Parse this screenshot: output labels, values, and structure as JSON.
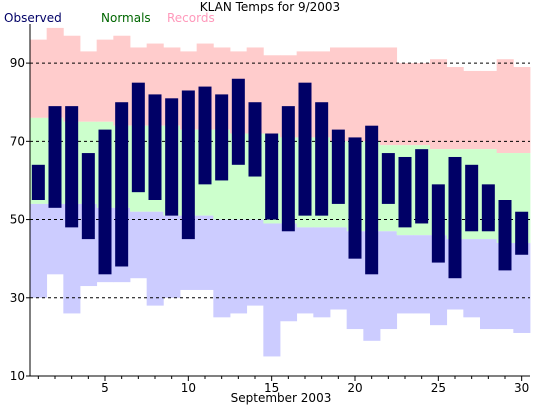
{
  "chart_data": {
    "type": "bar",
    "title": "KLAN Temps for 9/2003",
    "xlabel": "September 2003",
    "ylabel": "",
    "ylim": [
      10,
      100
    ],
    "xlim": [
      0.5,
      30.5
    ],
    "grid": "horizontal dashed",
    "legend_position": "top-left",
    "yticks": [
      10,
      30,
      50,
      70,
      90
    ],
    "xticks": [
      5,
      10,
      15,
      20,
      25,
      30
    ],
    "legend": [
      {
        "label": "Observed",
        "color": "#000066"
      },
      {
        "label": "Normals",
        "color": "#006600"
      },
      {
        "label": "Records",
        "color": "#ff99bb"
      }
    ],
    "colors": {
      "observed": "#000066",
      "normals_fill": "#ccffcc",
      "records_high_fill": "#ffcccc",
      "records_low_fill": "#ccccff",
      "grid": "#000000"
    },
    "days": [
      1,
      2,
      3,
      4,
      5,
      6,
      7,
      8,
      9,
      10,
      11,
      12,
      13,
      14,
      15,
      16,
      17,
      18,
      19,
      20,
      21,
      22,
      23,
      24,
      25,
      26,
      27,
      28,
      29,
      30
    ],
    "series": [
      {
        "name": "Observed",
        "high": [
          64,
          79,
          79,
          67,
          73,
          80,
          85,
          82,
          81,
          83,
          84,
          82,
          86,
          80,
          72,
          79,
          85,
          80,
          73,
          71,
          74,
          67,
          66,
          68,
          59,
          66,
          64,
          59,
          55,
          52
        ],
        "low": [
          55,
          53,
          48,
          45,
          36,
          38,
          57,
          55,
          51,
          45,
          59,
          60,
          64,
          61,
          50,
          47,
          51,
          51,
          54,
          40,
          36,
          54,
          48,
          49,
          39,
          35,
          47,
          47,
          37,
          41
        ]
      },
      {
        "name": "Normals",
        "high": [
          76,
          76,
          75,
          75,
          75,
          74,
          74,
          74,
          74,
          73,
          73,
          73,
          72,
          72,
          72,
          71,
          71,
          71,
          70,
          70,
          70,
          69,
          69,
          69,
          68,
          68,
          68,
          68,
          67,
          67
        ],
        "low": [
          54,
          54,
          54,
          54,
          53,
          53,
          52,
          52,
          51,
          51,
          51,
          50,
          50,
          50,
          49,
          49,
          48,
          48,
          48,
          47,
          47,
          47,
          46,
          46,
          46,
          45,
          45,
          45,
          44,
          44
        ]
      },
      {
        "name": "Records",
        "high": [
          96,
          99,
          97,
          93,
          96,
          97,
          94,
          95,
          94,
          93,
          95,
          94,
          93,
          94,
          92,
          92,
          93,
          93,
          94,
          94,
          94,
          94,
          90,
          90,
          91,
          89,
          88,
          88,
          91,
          89
        ],
        "low": [
          30,
          36,
          26,
          33,
          34,
          34,
          35,
          28,
          30,
          32,
          32,
          25,
          26,
          28,
          15,
          24,
          26,
          25,
          27,
          22,
          19,
          22,
          26,
          26,
          23,
          27,
          25,
          22,
          22,
          21
        ]
      }
    ]
  }
}
